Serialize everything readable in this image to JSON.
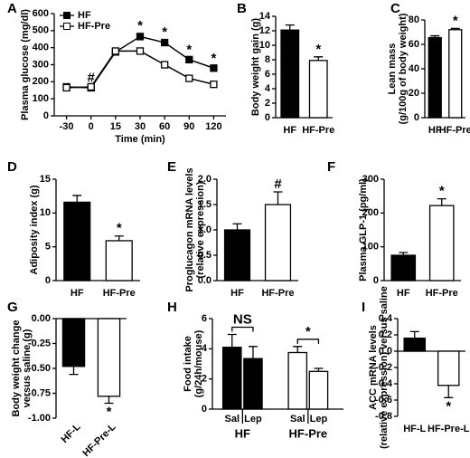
{
  "chart_data": [
    {
      "type": "line",
      "panel": "A",
      "ylabel": [
        "Plasma glucose (mg/dl)"
      ],
      "xlabel": "Time (min)",
      "categories": [
        "-30",
        "0",
        "15",
        "30",
        "60",
        "90",
        "120"
      ],
      "series": [
        {
          "name": "HF",
          "color": "#000000",
          "marker_fill": "#000000",
          "values": [
            170,
            165,
            375,
            465,
            430,
            330,
            280
          ],
          "errors": [
            12,
            10,
            12,
            18,
            15,
            12,
            12
          ]
        },
        {
          "name": "HF-Pre",
          "color": "#000000",
          "marker_fill": "#ffffff",
          "values": [
            165,
            170,
            380,
            380,
            300,
            220,
            185
          ],
          "errors": [
            10,
            8,
            12,
            15,
            10,
            8,
            8
          ]
        }
      ],
      "significance": [
        null,
        "#",
        null,
        "*",
        "*",
        "*",
        "*"
      ],
      "ylim": [
        0,
        600
      ],
      "yticks": [
        0,
        100,
        200,
        300,
        400,
        500,
        600
      ],
      "legend": "upper left"
    },
    {
      "type": "bar",
      "panel": "B",
      "ylabel": [
        "Body weight gain (g)"
      ],
      "categories": [
        "HF",
        "HF-Pre"
      ],
      "values": [
        12.1,
        7.9
      ],
      "errors": [
        0.7,
        0.5
      ],
      "colors": [
        "#000000",
        "#ffffff"
      ],
      "significance": [
        null,
        "*"
      ],
      "ylim": [
        0,
        14
      ],
      "yticks": [
        0,
        2,
        4,
        6,
        8,
        10,
        12,
        14
      ]
    },
    {
      "type": "bar",
      "panel": "C",
      "ylabel": [
        "Lean mass",
        "(g/100g of body weight)"
      ],
      "categories": [
        "HF",
        "HF-Pre"
      ],
      "values": [
        65.5,
        72
      ],
      "errors": [
        1.5,
        1
      ],
      "colors": [
        "#000000",
        "#ffffff"
      ],
      "significance": [
        null,
        "*"
      ],
      "ylim": [
        0,
        80
      ],
      "yticks": [
        0,
        20,
        40,
        60,
        80
      ]
    },
    {
      "type": "bar",
      "panel": "D",
      "ylabel": [
        "Adiposity index (g)"
      ],
      "categories": [
        "HF",
        "HF-Pre"
      ],
      "values": [
        11.6,
        5.9
      ],
      "errors": [
        1.0,
        0.7
      ],
      "colors": [
        "#000000",
        "#ffffff"
      ],
      "significance": [
        null,
        "*"
      ],
      "ylim": [
        0,
        15
      ],
      "yticks": [
        0,
        5,
        10,
        15
      ]
    },
    {
      "type": "bar",
      "panel": "E",
      "ylabel": [
        "Proglucagon mRNA levels",
        "(relative expression)"
      ],
      "categories": [
        "HF",
        "HF-Pre"
      ],
      "values": [
        1.0,
        1.5
      ],
      "errors": [
        0.12,
        0.25
      ],
      "colors": [
        "#000000",
        "#ffffff"
      ],
      "significance": [
        null,
        "#"
      ],
      "ylim": [
        0,
        2
      ],
      "yticks": [
        {
          "value": 0,
          "label": "0.0"
        },
        0.5,
        {
          "value": 1,
          "label": "1.0"
        },
        1.5,
        {
          "value": 2,
          "label": "2.0"
        }
      ]
    },
    {
      "type": "bar",
      "panel": "F",
      "ylabel": [
        "Plasma GLP-1 (pg/ml)"
      ],
      "categories": [
        "HF",
        "HF-Pre"
      ],
      "values": [
        75,
        222
      ],
      "errors": [
        8,
        20
      ],
      "colors": [
        "#000000",
        "#ffffff"
      ],
      "significance": [
        null,
        "*"
      ],
      "ylim": [
        0,
        300
      ],
      "yticks": [
        0,
        100,
        200,
        300
      ]
    },
    {
      "type": "bar",
      "panel": "G",
      "ylabel": [
        "Body weight change",
        "versus saline (g)"
      ],
      "categories": [
        "HF-L",
        "HF-Pre-L"
      ],
      "values": [
        -0.48,
        -0.78
      ],
      "errors": [
        0.08,
        0.07
      ],
      "colors": [
        "#000000",
        "#ffffff"
      ],
      "significance": [
        null,
        "*"
      ],
      "xlabel_rotation": -45,
      "ylim": [
        -1,
        0
      ],
      "yticks": [
        {
          "value": 0,
          "label": "0.00"
        },
        -0.25,
        {
          "value": -0.5,
          "label": "-0.50"
        },
        -0.75,
        {
          "value": -1,
          "label": "-1.00"
        }
      ]
    },
    {
      "type": "grouped_bar",
      "panel": "H",
      "ylabel": [
        "Food intake",
        "(g/24h/mouse)"
      ],
      "categories": [
        "Sal",
        "Lep",
        "Sal",
        "Lep"
      ],
      "groups": [
        "HF",
        "HF-Pre"
      ],
      "group_significance": [
        "NS",
        "*"
      ],
      "values": [
        4.1,
        3.35,
        3.75,
        2.5
      ],
      "errors": [
        0.85,
        0.8,
        0.4,
        0.2
      ],
      "colors": [
        "#000000",
        "#000000",
        "#ffffff",
        "#ffffff"
      ],
      "ylim": [
        0,
        6
      ],
      "yticks": [
        0,
        2,
        4,
        6
      ]
    },
    {
      "type": "bar",
      "panel": "I",
      "ylabel": [
        "ACC mRNA levels",
        "(relative expression) versus saline"
      ],
      "categories": [
        "HF-L",
        "HF-Pre-L"
      ],
      "values": [
        0.16,
        -0.42
      ],
      "errors": [
        0.08,
        0.15
      ],
      "colors": [
        "#000000",
        "#ffffff"
      ],
      "significance": [
        null,
        "*"
      ],
      "ylim": [
        -0.8,
        0.4
      ],
      "yticks": [
        0.4,
        0.2,
        {
          "value": 0,
          "label": "0.0"
        },
        -0.2,
        -0.4,
        -0.6,
        -0.8
      ]
    }
  ]
}
